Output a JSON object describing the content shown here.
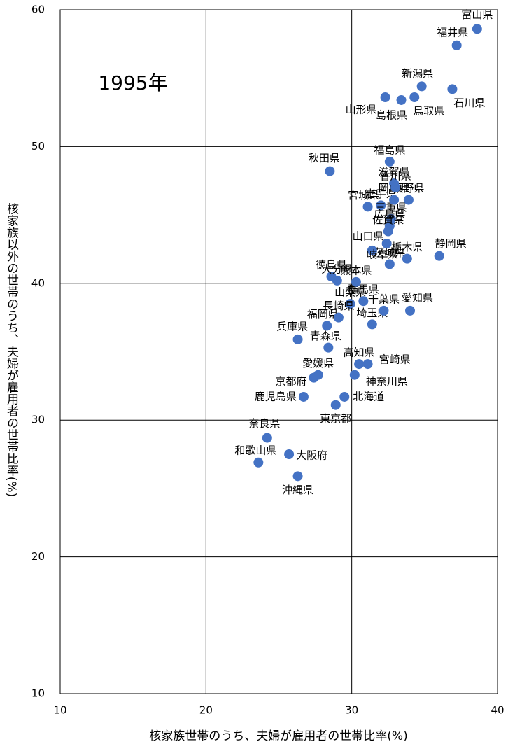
{
  "chart_data": {
    "type": "scatter",
    "annotation": "1995年",
    "x_label": "核家族世帯のうち、夫婦が雇用者の世帯比率(%)",
    "y_label": "核家族以外の世帯のうち、夫婦が雇用者の世帯比率(%)",
    "color": "#4472c4",
    "labels": [
      "北海道",
      "青森県",
      "岩手県",
      "宮城県",
      "秋田県",
      "山形県",
      "福島県",
      "茨城県",
      "栃木県",
      "群馬県",
      "埼玉県",
      "千葉県",
      "東京都",
      "神奈川県",
      "新潟県",
      "富山県",
      "石川県",
      "福井県",
      "山梨県",
      "長野県",
      "岐阜県",
      "静岡県",
      "愛知県",
      "三重県",
      "滋賀県",
      "京都府",
      "大阪府",
      "兵庫県",
      "奈良県",
      "和歌山県",
      "鳥取県",
      "島根県",
      "岡山県",
      "広島県",
      "山口県",
      "徳島県",
      "香川県",
      "愛媛県",
      "高知県",
      "福岡県",
      "佐賀県",
      "長崎県",
      "熊本県",
      "大分県",
      "宮崎県",
      "鹿児島県",
      "沖縄県"
    ],
    "x": [
      29.5,
      28.4,
      32.0,
      31.1,
      28.5,
      32.3,
      32.6,
      32.6,
      33.8,
      30.8,
      31.4,
      32.2,
      28.9,
      30.2,
      34.8,
      38.6,
      36.9,
      37.2,
      29.9,
      33.9,
      31.4,
      36.0,
      34.0,
      32.7,
      32.9,
      27.4,
      25.7,
      26.3,
      24.2,
      23.6,
      34.3,
      33.4,
      32.9,
      32.6,
      32.4,
      28.6,
      33.0,
      27.7,
      30.5,
      28.3,
      32.5,
      29.1,
      30.3,
      29.0,
      31.1,
      26.7,
      26.3
    ],
    "values": [
      31.7,
      35.3,
      45.7,
      45.6,
      48.2,
      53.6,
      48.9,
      41.4,
      41.8,
      38.7,
      37.0,
      38.0,
      31.1,
      33.3,
      54.4,
      58.6,
      54.2,
      57.4,
      38.5,
      46.1,
      42.4,
      42.0,
      38.0,
      44.7,
      47.3,
      33.1,
      27.5,
      35.9,
      28.7,
      26.9,
      53.6,
      53.4,
      46.1,
      44.2,
      42.9,
      40.5,
      47.0,
      33.3,
      34.1,
      36.9,
      43.8,
      37.5,
      40.1,
      40.2,
      34.1,
      31.7,
      25.9
    ],
    "xlim": [
      10,
      40
    ],
    "xticks": [
      10,
      20,
      30,
      40
    ],
    "ylim": [
      10,
      60
    ],
    "yticks": [
      10,
      20,
      30,
      40,
      50,
      60
    ],
    "grid": true
  }
}
